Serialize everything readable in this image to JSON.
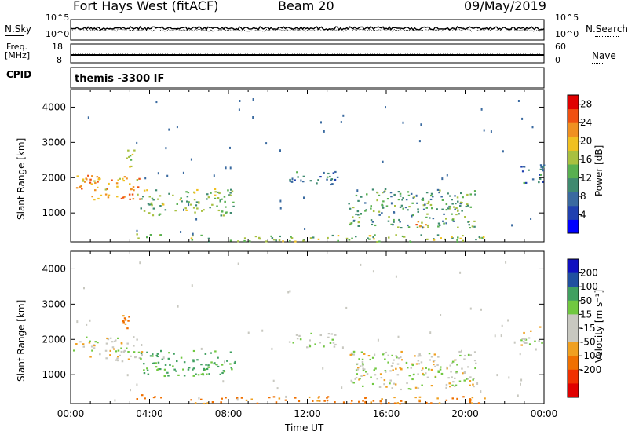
{
  "header": {
    "station": "Fort Hays West (fitACF)",
    "beam": "Beam 20",
    "date": "09/May/2019"
  },
  "strip": {
    "nsky_label": "N.Sky",
    "nsearch_label": "N.Search",
    "freq_label_1": "Freq.",
    "freq_label_2": "[MHz]",
    "nave_label": "Nave",
    "cpid_label": "CPID",
    "cpid_value": "themis -3300 IF",
    "noise_ticks_left": [
      "10^5",
      "10^0"
    ],
    "noise_ticks_right": [
      "10^5",
      "10^0"
    ],
    "freq_ticks": [
      "18",
      "8"
    ],
    "nave_ticks": [
      "60",
      "0"
    ]
  },
  "colors": {
    "power": [
      "#0000ff",
      "#2040b0",
      "#3a6aa0",
      "#3f8a70",
      "#58b050",
      "#a8c040",
      "#f0c020",
      "#f09020",
      "#f05010",
      "#e00000"
    ],
    "velocity": [
      "#e00000",
      "#f03000",
      "#f07000",
      "#f0a020",
      "#c8c8c0",
      "#c8c8c0",
      "#70c840",
      "#40a060",
      "#2050a0",
      "#1010c0"
    ]
  },
  "chart_data": [
    {
      "type": "heatmap",
      "name": "power",
      "xlabel": "",
      "ylabel": "Slant Range [km]",
      "xlim": [
        "00:00",
        "24:00"
      ],
      "ylim": [
        180,
        4500
      ],
      "yticks": [
        1000,
        2000,
        3000,
        4000
      ],
      "colorbar": {
        "label": "Power [dB]",
        "ticks": [
          4,
          8,
          12,
          16,
          20,
          24,
          28
        ],
        "range": [
          0,
          30
        ]
      },
      "regions": [
        {
          "t_start": 0.1,
          "t_end": 3.6,
          "range_start": 1400,
          "range_end": 2100,
          "value": 22
        },
        {
          "t_start": 2.6,
          "t_end": 3.3,
          "range_start": 2300,
          "range_end": 2800,
          "value": 18
        },
        {
          "t_start": 3.5,
          "t_end": 8.3,
          "range_start": 950,
          "range_end": 1700,
          "value": 14
        },
        {
          "t_start": 3.3,
          "t_end": 4.8,
          "range_start": 300,
          "range_end": 450,
          "value": 16
        },
        {
          "t_start": 11.0,
          "t_end": 13.5,
          "range_start": 1800,
          "range_end": 2200,
          "value": 8
        },
        {
          "t_start": 14.0,
          "t_end": 20.5,
          "range_start": 600,
          "range_end": 1700,
          "value": 12
        },
        {
          "t_start": 17.0,
          "t_end": 18.5,
          "range_start": 600,
          "range_end": 800,
          "value": 20
        },
        {
          "t_start": 22.8,
          "t_end": 24.0,
          "range_start": 1800,
          "range_end": 2400,
          "value": 8
        },
        {
          "t_start": 6.0,
          "t_end": 21.0,
          "range_start": 200,
          "range_end": 400,
          "value": 14
        }
      ]
    },
    {
      "type": "heatmap",
      "name": "velocity",
      "xlabel": "Time UT",
      "ylabel": "Slant Range [km]",
      "xlim": [
        "00:00",
        "24:00"
      ],
      "ylim": [
        180,
        4500
      ],
      "yticks": [
        1000,
        2000,
        3000,
        4000
      ],
      "xticks": [
        "00:00",
        "04:00",
        "08:00",
        "12:00",
        "16:00",
        "20:00",
        "00:00"
      ],
      "colorbar": {
        "label": "Velocity [m s⁻¹]",
        "ticks": [
          200,
          100,
          50,
          15,
          -15,
          -50,
          -100,
          -200
        ]
      },
      "regions": [
        {
          "t_start": 0.1,
          "t_end": 3.6,
          "range_start": 1400,
          "range_end": 2100,
          "value": 0
        },
        {
          "t_start": 2.6,
          "t_end": 3.3,
          "range_start": 2300,
          "range_end": 2800,
          "value": -60
        },
        {
          "t_start": 3.5,
          "t_end": 8.3,
          "range_start": 950,
          "range_end": 1700,
          "value": 60
        },
        {
          "t_start": 3.3,
          "t_end": 4.8,
          "range_start": 300,
          "range_end": 450,
          "value": -80
        },
        {
          "t_start": 11.0,
          "t_end": 13.5,
          "range_start": 1800,
          "range_end": 2200,
          "value": 20
        },
        {
          "t_start": 14.0,
          "t_end": 20.5,
          "range_start": 600,
          "range_end": 1700,
          "value": 0
        },
        {
          "t_start": 22.8,
          "t_end": 24.0,
          "range_start": 1800,
          "range_end": 2400,
          "value": 0
        },
        {
          "t_start": 6.0,
          "t_end": 21.0,
          "range_start": 200,
          "range_end": 400,
          "value": -60
        }
      ]
    }
  ]
}
